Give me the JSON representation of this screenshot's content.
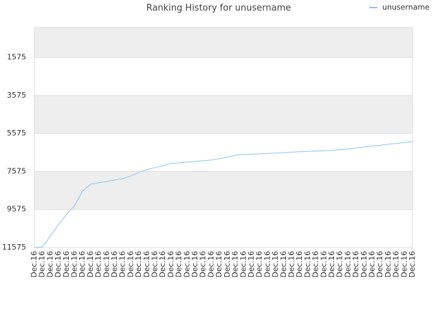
{
  "chart_data": {
    "type": "line",
    "title": "Ranking History for unusername",
    "categories": [
      "Dec.16",
      "Dec.16",
      "Dec.16",
      "Dec.16",
      "Dec.16",
      "Dec.16",
      "Dec.16",
      "Dec.16",
      "Dec.16",
      "Dec.16",
      "Dec.16",
      "Dec.16",
      "Dec.16",
      "Dec.16",
      "Dec.16",
      "Dec.16",
      "Dec.16",
      "Dec.16",
      "Dec.16",
      "Dec.16",
      "Dec.16",
      "Dec.16",
      "Dec.16",
      "Dec.16",
      "Dec.16",
      "Dec.16",
      "Dec.16",
      "Dec.16",
      "Dec.16",
      "Dec.16",
      "Dec.16",
      "Dec.16",
      "Dec.16",
      "Dec.16",
      "Dec.16",
      "Dec.16",
      "Dec.16",
      "Dec.16",
      "Dec.16",
      "Dec.16",
      "Dec.16",
      "Dec.16",
      "Dec.16",
      "Dec.16",
      "Dec.16",
      "Dec.16",
      "Dec.16",
      "Dec.16"
    ],
    "series": [
      {
        "name": "unusername",
        "color": "#90c3ee",
        "values": [
          11575,
          11539,
          10959,
          10380,
          9836,
          9365,
          8604,
          8242,
          8169,
          8097,
          8024,
          7952,
          7807,
          7626,
          7480,
          7372,
          7264,
          7155,
          7119,
          7082,
          7046,
          7010,
          6974,
          6901,
          6829,
          6720,
          6684,
          6666,
          6648,
          6630,
          6612,
          6575,
          6557,
          6539,
          6521,
          6503,
          6485,
          6466,
          6430,
          6394,
          6340,
          6285,
          6231,
          6195,
          6140,
          6104,
          6050,
          5995
        ]
      }
    ],
    "ylim": [
      11575,
      0
    ],
    "yticks": [
      1575,
      3575,
      5575,
      7575,
      9575,
      11575
    ],
    "band_colors": [
      "#eeeeee",
      "#ffffff"
    ],
    "legend": "top-right"
  }
}
